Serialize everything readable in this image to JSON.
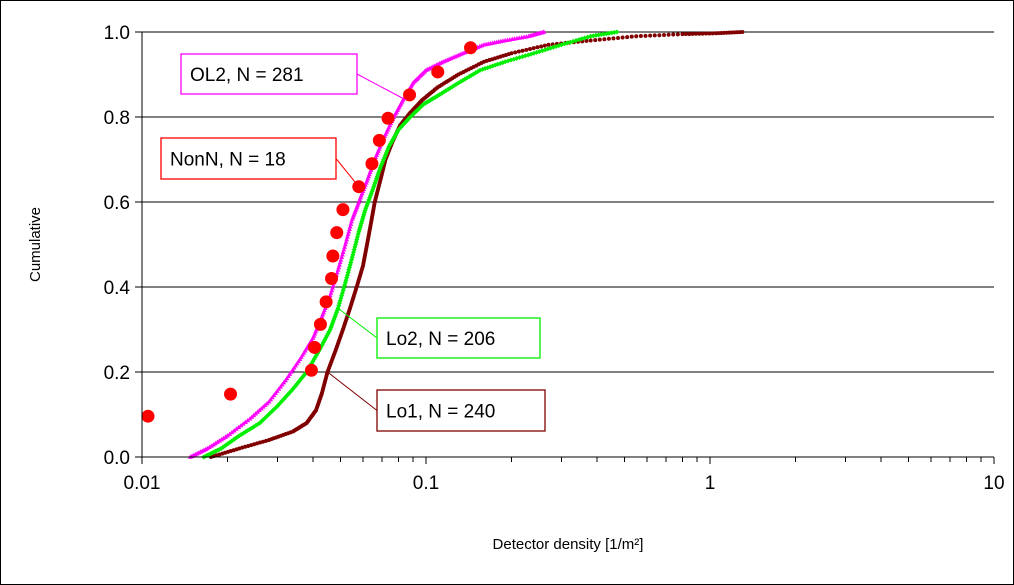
{
  "chart_data": {
    "type": "scatter",
    "title": "",
    "xlabel": "Detector density [1/m²]",
    "ylabel": "Cumulative",
    "x_scale": "log",
    "xlim": [
      0.01,
      10
    ],
    "ylim": [
      0,
      1
    ],
    "x_ticks": [
      "0.01",
      "0.1",
      "1",
      "10"
    ],
    "y_ticks": [
      "0.0",
      "0.2",
      "0.4",
      "0.6",
      "0.8",
      "1.0"
    ],
    "grid": "horizontal major gridlines",
    "legend": "none (series identified by boxed callout annotations)",
    "series": [
      {
        "name": "OL2, N = 281",
        "color": "#ff00ff",
        "marker": "small triangles",
        "points": [
          [
            0.0148,
            0.0
          ],
          [
            0.017,
            0.02
          ],
          [
            0.02,
            0.05
          ],
          [
            0.024,
            0.09
          ],
          [
            0.028,
            0.13
          ],
          [
            0.032,
            0.18
          ],
          [
            0.036,
            0.23
          ],
          [
            0.04,
            0.28
          ],
          [
            0.043,
            0.33
          ],
          [
            0.046,
            0.38
          ],
          [
            0.049,
            0.44
          ],
          [
            0.052,
            0.5
          ],
          [
            0.055,
            0.56
          ],
          [
            0.058,
            0.6
          ],
          [
            0.062,
            0.65
          ],
          [
            0.066,
            0.7
          ],
          [
            0.071,
            0.75
          ],
          [
            0.077,
            0.8
          ],
          [
            0.083,
            0.84
          ],
          [
            0.09,
            0.88
          ],
          [
            0.1,
            0.91
          ],
          [
            0.115,
            0.93
          ],
          [
            0.135,
            0.95
          ],
          [
            0.16,
            0.97
          ],
          [
            0.19,
            0.98
          ],
          [
            0.23,
            0.99
          ],
          [
            0.26,
            1.0
          ]
        ]
      },
      {
        "name": "NonN, N = 18",
        "color": "#ff0000",
        "marker": "large circles",
        "points": [
          [
            0.0105,
            0.096
          ],
          [
            0.0205,
            0.148
          ],
          [
            0.0395,
            0.204
          ],
          [
            0.0405,
            0.258
          ],
          [
            0.0425,
            0.312
          ],
          [
            0.0445,
            0.365
          ],
          [
            0.0465,
            0.42
          ],
          [
            0.047,
            0.473
          ],
          [
            0.0485,
            0.528
          ],
          [
            0.051,
            0.582
          ],
          [
            0.058,
            0.636
          ],
          [
            0.0645,
            0.69
          ],
          [
            0.0685,
            0.745
          ],
          [
            0.0735,
            0.797
          ],
          [
            0.0875,
            0.852
          ],
          [
            0.11,
            0.906
          ],
          [
            0.1435,
            0.963
          ]
        ]
      },
      {
        "name": "Lo2, N = 206",
        "color": "#00ee00",
        "marker": "small diamonds",
        "points": [
          [
            0.0165,
            0.0
          ],
          [
            0.019,
            0.02
          ],
          [
            0.022,
            0.05
          ],
          [
            0.026,
            0.08
          ],
          [
            0.03,
            0.12
          ],
          [
            0.034,
            0.16
          ],
          [
            0.038,
            0.2
          ],
          [
            0.042,
            0.25
          ],
          [
            0.046,
            0.3
          ],
          [
            0.049,
            0.35
          ],
          [
            0.052,
            0.41
          ],
          [
            0.055,
            0.47
          ],
          [
            0.058,
            0.53
          ],
          [
            0.061,
            0.58
          ],
          [
            0.065,
            0.63
          ],
          [
            0.069,
            0.68
          ],
          [
            0.074,
            0.73
          ],
          [
            0.08,
            0.77
          ],
          [
            0.088,
            0.8
          ],
          [
            0.098,
            0.83
          ],
          [
            0.11,
            0.85
          ],
          [
            0.13,
            0.88
          ],
          [
            0.155,
            0.91
          ],
          [
            0.19,
            0.93
          ],
          [
            0.24,
            0.95
          ],
          [
            0.3,
            0.97
          ],
          [
            0.38,
            0.99
          ],
          [
            0.47,
            1.0
          ]
        ]
      },
      {
        "name": "Lo1, N = 240",
        "color": "#800000",
        "marker": "small dots",
        "points": [
          [
            0.0175,
            0.0
          ],
          [
            0.022,
            0.02
          ],
          [
            0.028,
            0.04
          ],
          [
            0.034,
            0.06
          ],
          [
            0.038,
            0.08
          ],
          [
            0.041,
            0.11
          ],
          [
            0.043,
            0.15
          ],
          [
            0.045,
            0.2
          ],
          [
            0.048,
            0.25
          ],
          [
            0.051,
            0.3
          ],
          [
            0.054,
            0.35
          ],
          [
            0.057,
            0.4
          ],
          [
            0.06,
            0.45
          ],
          [
            0.062,
            0.5
          ],
          [
            0.064,
            0.55
          ],
          [
            0.066,
            0.6
          ],
          [
            0.069,
            0.65
          ],
          [
            0.072,
            0.7
          ],
          [
            0.076,
            0.74
          ],
          [
            0.081,
            0.78
          ],
          [
            0.088,
            0.81
          ],
          [
            0.097,
            0.84
          ],
          [
            0.11,
            0.87
          ],
          [
            0.13,
            0.9
          ],
          [
            0.16,
            0.93
          ],
          [
            0.2,
            0.95
          ],
          [
            0.27,
            0.97
          ],
          [
            0.38,
            0.98
          ],
          [
            0.55,
            0.99
          ],
          [
            0.8,
            0.995
          ],
          [
            1.05,
            0.997
          ],
          [
            1.3,
            1.0
          ]
        ]
      }
    ],
    "annotations": [
      {
        "text": "OL2, N = 281",
        "series": 0,
        "target": [
          0.085,
          0.84
        ]
      },
      {
        "text": "NonN, N = 18",
        "series": 1,
        "target": [
          0.058,
          0.636
        ]
      },
      {
        "text": "Lo2, N = 206",
        "series": 2,
        "target": [
          0.049,
          0.35
        ]
      },
      {
        "text": "Lo1, N = 240",
        "series": 3,
        "target": [
          0.045,
          0.2
        ]
      }
    ]
  }
}
